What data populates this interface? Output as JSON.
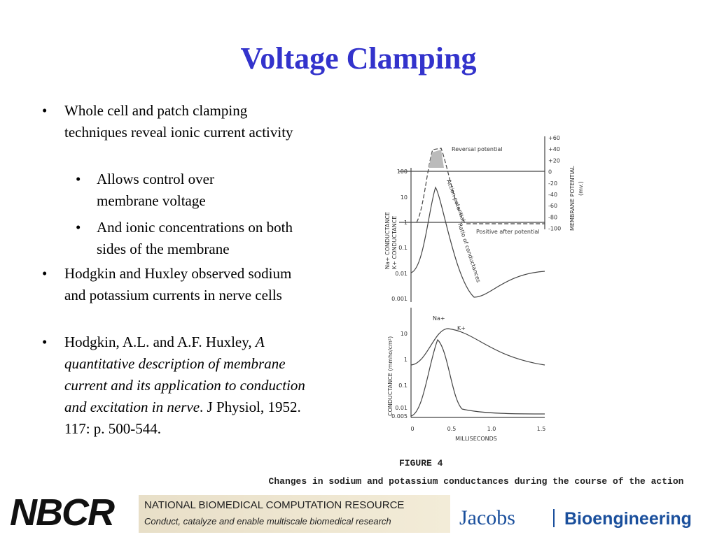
{
  "title": "Voltage Clamping",
  "bullets": [
    {
      "text": "Whole cell and patch clamping techniques reveal ionic current activity",
      "sub": [
        "Allows control over membrane voltage",
        "And ionic concentrations on both sides of the membrane"
      ]
    },
    {
      "text": "Hodgkin and Huxley observed sodium and potassium currents in nerve cells"
    },
    {
      "parts": [
        "Hodgkin, A.L. and A.F. Huxley, ",
        "A quantitative description of membrane current and its application to conduction and excitation in nerve",
        ". J Physiol, 1952. 117: p. 500-544."
      ]
    }
  ],
  "figure": {
    "top_left_ticks": [
      "100",
      "10",
      "1",
      "0.1",
      "0.01",
      "0.001"
    ],
    "top_left_label": [
      "Na+ CONDUCTANCE",
      "K+ CONDUCTANCE"
    ],
    "top_right_ticks": [
      "+60",
      "+40",
      "+20",
      "0",
      "-20",
      "-40",
      "-60",
      "-80",
      "-100"
    ],
    "top_right_label": [
      "MEMBRANE POTENTIAL",
      "(mv.)"
    ],
    "annotations": [
      "Reversal potential",
      "Action potential",
      "Ratio of conductances",
      "Positive after potential"
    ],
    "bottom_left_ticks": [
      "10",
      "1",
      "0.1",
      "0.01",
      "0.005"
    ],
    "bottom_left_label": "CONDUCTANCE (mmho/cm²)",
    "curve_labels": [
      "Na+",
      "K+"
    ],
    "x_ticks": [
      "0",
      "0.5",
      "1.0",
      "1.5"
    ],
    "x_label": "MILLISECONDS",
    "figure_number": "FIGURE 4",
    "caption": "Changes in sodium and potassium conductances during the course of the action potential."
  },
  "footer": {
    "logo": "NBCR",
    "org": "NATIONAL BIOMEDICAL COMPUTATION RESOURCE",
    "tagline": "Conduct, catalyze and enable multiscale biomedical research",
    "school": "Jacobs",
    "dept": "Bioengineering"
  }
}
